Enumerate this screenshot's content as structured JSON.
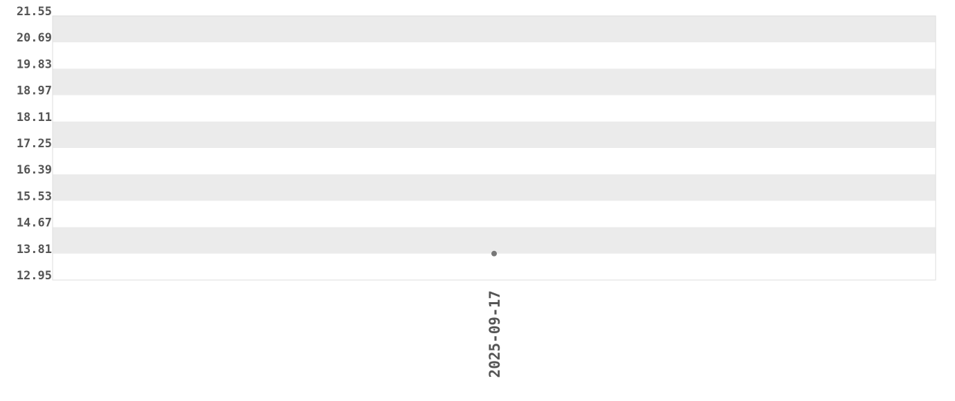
{
  "chart_data": {
    "type": "scatter",
    "title": "",
    "xlabel": "",
    "ylabel": "",
    "x": [
      "2025-09-17"
    ],
    "y": [
      13.81
    ],
    "ylim": [
      12.95,
      21.55
    ],
    "yticks": [
      "21.55",
      "20.69",
      "19.83",
      "18.97",
      "18.11",
      "17.25",
      "16.39",
      "15.53",
      "14.67",
      "13.81",
      "12.95"
    ],
    "xticks": [
      "2025-09-17"
    ],
    "grid": "alternating horizontal bands",
    "colors": {
      "band": "#ebebeb",
      "point": "#777777",
      "text": "#555555",
      "border": "#dddddd"
    }
  }
}
